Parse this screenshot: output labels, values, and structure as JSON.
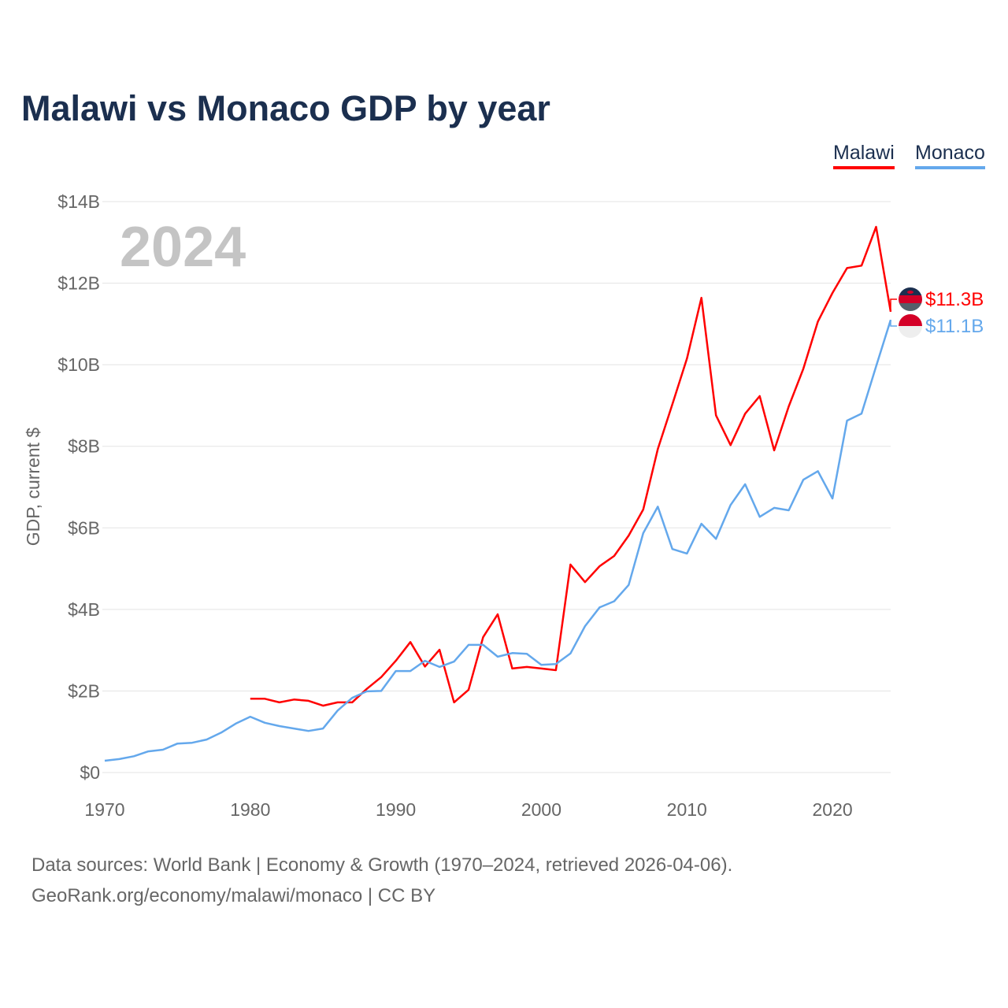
{
  "chart_data": {
    "type": "line",
    "title": "Malawi vs Monaco GDP by year",
    "xlabel": "",
    "ylabel": "GDP, current $",
    "year_watermark": "2024",
    "xlim": [
      1970,
      2024
    ],
    "ylim": [
      0,
      14
    ],
    "x_ticks": [
      1970,
      1980,
      1990,
      2000,
      2010,
      2020
    ],
    "y_ticks": [
      {
        "v": 0,
        "label": "$0"
      },
      {
        "v": 2,
        "label": "$2B"
      },
      {
        "v": 4,
        "label": "$4B"
      },
      {
        "v": 6,
        "label": "$6B"
      },
      {
        "v": 8,
        "label": "$8B"
      },
      {
        "v": 10,
        "label": "$10B"
      },
      {
        "v": 12,
        "label": "$12B"
      },
      {
        "v": 14,
        "label": "$14B"
      }
    ],
    "grid": true,
    "legend_position": "top-right",
    "series": [
      {
        "name": "Malawi",
        "color": "#ff0000",
        "end_label": "$11.3B",
        "flag": "malawi-flag",
        "start_year": 1980,
        "values": [
          1.81,
          1.81,
          1.72,
          1.79,
          1.76,
          1.64,
          1.72,
          1.72,
          2.05,
          2.34,
          2.74,
          3.2,
          2.6,
          3.01,
          1.72,
          2.03,
          3.32,
          3.88,
          2.55,
          2.59,
          2.55,
          2.51,
          5.1,
          4.67,
          5.06,
          5.31,
          5.81,
          6.45,
          7.93,
          9.03,
          10.15,
          11.64,
          8.76,
          8.03,
          8.8,
          9.23,
          7.9,
          8.98,
          9.9,
          11.06,
          11.76,
          12.37,
          12.43,
          13.38,
          11.3
        ]
      },
      {
        "name": "Monaco",
        "color": "#64a8ec",
        "end_label": "$11.1B",
        "flag": "monaco-flag",
        "start_year": 1970,
        "values": [
          0.29,
          0.33,
          0.4,
          0.52,
          0.56,
          0.71,
          0.73,
          0.81,
          0.98,
          1.2,
          1.37,
          1.22,
          1.14,
          1.08,
          1.02,
          1.08,
          1.52,
          1.83,
          1.99,
          2.0,
          2.49,
          2.49,
          2.74,
          2.59,
          2.72,
          3.13,
          3.13,
          2.84,
          2.93,
          2.91,
          2.64,
          2.66,
          2.92,
          3.59,
          4.05,
          4.2,
          4.6,
          5.87,
          6.52,
          5.48,
          5.37,
          6.1,
          5.73,
          6.56,
          7.07,
          6.27,
          6.49,
          6.43,
          7.18,
          7.39,
          6.72,
          8.63,
          8.8,
          9.96,
          11.1
        ]
      }
    ]
  },
  "footer": {
    "line1": "Data sources: World Bank | Economy & Growth (1970–2024, retrieved 2026-04-06).",
    "line2": "GeoRank.org/economy/malawi/monaco | CC BY"
  }
}
